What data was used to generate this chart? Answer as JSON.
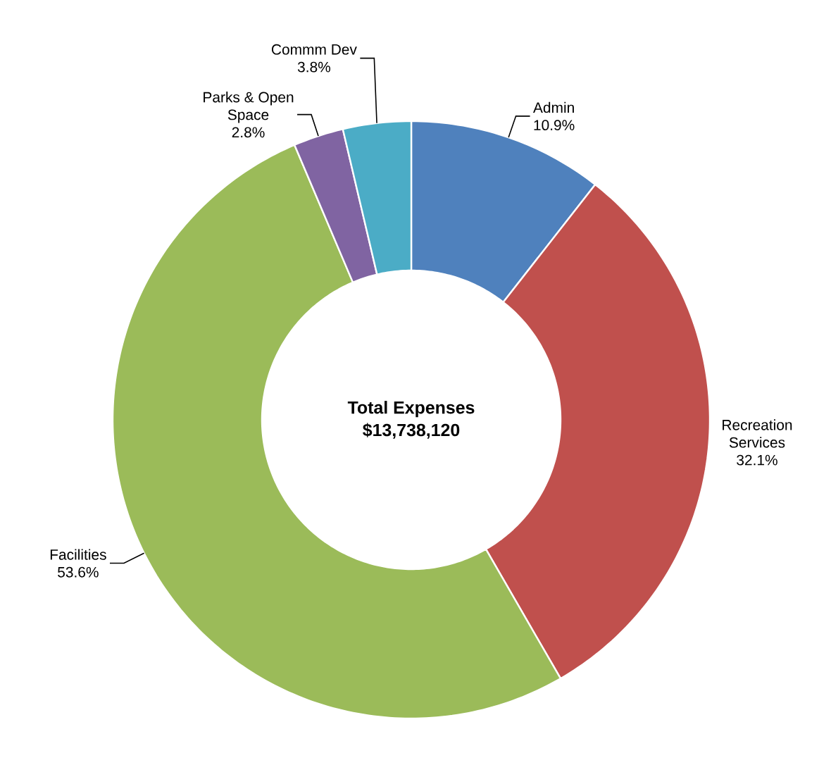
{
  "chart_data": {
    "type": "donut",
    "categories": [
      "Admin",
      "Recreation Services",
      "Facilities",
      "Parks & Open Space",
      "Commm Dev"
    ],
    "values": [
      10.9,
      32.1,
      53.6,
      2.8,
      3.8
    ],
    "colors": [
      "#4f81bd",
      "#c0504d",
      "#9bbb59",
      "#8064a2",
      "#4bacc6"
    ],
    "value_labels": [
      "10.9%",
      "32.1%",
      "53.6%",
      "2.8%",
      "3.8%"
    ],
    "annotations": [
      "Total Expenses",
      "$13,738,120"
    ]
  }
}
